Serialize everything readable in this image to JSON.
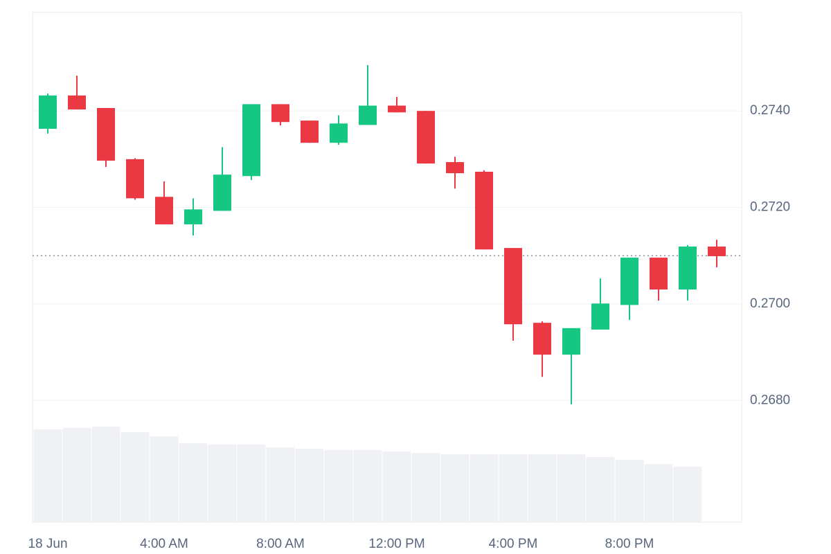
{
  "chart_data": {
    "type": "candlestick",
    "categories": [
      "18 Jun",
      null,
      null,
      null,
      "4:00 AM",
      null,
      null,
      null,
      "8:00 AM",
      null,
      null,
      null,
      "12:00 PM",
      null,
      null,
      null,
      "4:00 PM",
      null,
      null,
      null,
      "8:00 PM",
      null,
      null,
      null
    ],
    "open": [
      0.27363,
      0.27432,
      0.27406,
      0.273,
      0.27222,
      0.27165,
      0.27193,
      0.27265,
      0.27414,
      0.2738,
      0.27334,
      0.27371,
      0.27411,
      0.274,
      0.27294,
      0.27274,
      0.27116,
      0.26961,
      0.26895,
      0.26947,
      0.26998,
      0.27096,
      0.2703,
      0.27119
    ],
    "high": [
      0.27436,
      0.27473,
      0.27406,
      0.27302,
      0.27254,
      0.27219,
      0.27325,
      0.27414,
      0.27414,
      0.2738,
      0.27391,
      0.27495,
      0.27429,
      0.274,
      0.27305,
      0.27277,
      0.27116,
      0.26964,
      0.2695,
      0.27053,
      0.27096,
      0.27096,
      0.27122,
      0.27133
    ],
    "low": [
      0.27353,
      0.27403,
      0.27284,
      0.27216,
      0.27165,
      0.27142,
      0.27193,
      0.27257,
      0.2737,
      0.27334,
      0.2733,
      0.27371,
      0.27397,
      0.27291,
      0.27239,
      0.27113,
      0.26924,
      0.26849,
      0.26792,
      0.26947,
      0.26967,
      0.27007,
      0.27007,
      0.27076
    ],
    "close": [
      0.27432,
      0.27403,
      0.27297,
      0.27219,
      0.27165,
      0.27196,
      0.27268,
      0.27414,
      0.27377,
      0.27334,
      0.27374,
      0.27411,
      0.27397,
      0.27291,
      0.27271,
      0.27113,
      0.26958,
      0.26895,
      0.2695,
      0.27001,
      0.27096,
      0.2703,
      0.27119,
      0.27099
    ],
    "volume": [
      134,
      136,
      138,
      130,
      124,
      114,
      112,
      112,
      108,
      106,
      104,
      104,
      102,
      100,
      98,
      98,
      98,
      98,
      98,
      94,
      90,
      84,
      80,
      null
    ],
    "up_color": "#16c784",
    "down_color": "#ea3943",
    "volume_color": "#eff1f4",
    "last_price": 0.271,
    "ylim": [
      0.26548,
      0.27604
    ],
    "yticks": [
      {
        "value": 0.268,
        "label": "0.2680"
      },
      {
        "value": 0.27,
        "label": "0.2700"
      },
      {
        "value": 0.272,
        "label": "0.2720"
      },
      {
        "value": 0.274,
        "label": "0.2740"
      }
    ],
    "grid": true
  }
}
